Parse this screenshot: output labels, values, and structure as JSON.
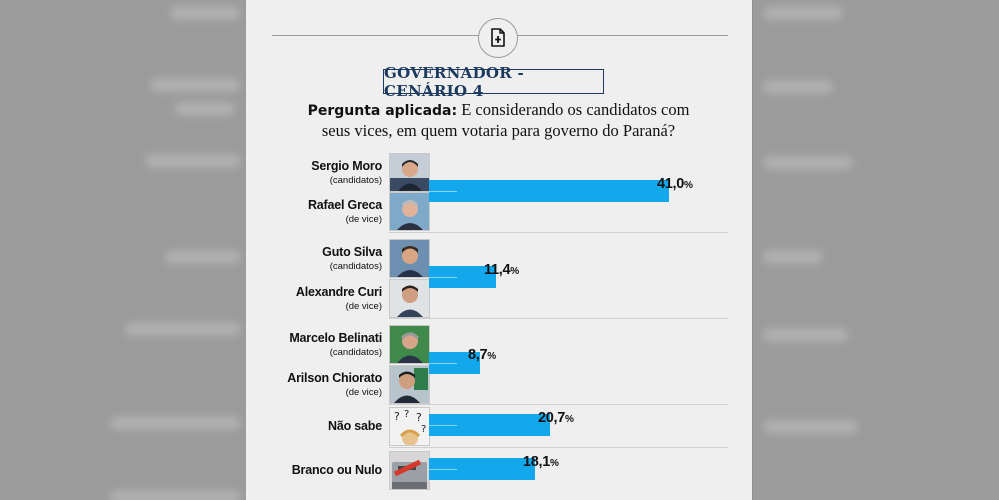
{
  "heading": "GOVERNADOR - CENÁRIO 4",
  "question": {
    "label": "Pergunta aplicada:",
    "text_line1": " E considerando os candidatos com",
    "text_line2": "seus vices, em quem votaria para governo do Paraná?"
  },
  "rows": [
    {
      "candidate": "Sergio Moro",
      "candidate_note": "(candidatos)",
      "vice": "Rafael Greca",
      "vice_note": "(de vice)",
      "value_label": "41,0",
      "unit": "%"
    },
    {
      "candidate": "Guto Silva",
      "candidate_note": "(candidatos)",
      "vice": "Alexandre Curi",
      "vice_note": "(de vice)",
      "value_label": "11,4",
      "unit": "%"
    },
    {
      "candidate": "Marcelo Belinati",
      "candidate_note": "(candidatos)",
      "vice": "Arilson Chiorato",
      "vice_note": "(de vice)",
      "value_label": "8,7",
      "unit": "%"
    },
    {
      "candidate": "Não sabe",
      "value_label": "20,7",
      "unit": "%"
    },
    {
      "candidate": "Branco ou Nulo",
      "value_label": "18,1",
      "unit": "%"
    }
  ],
  "chart_data": {
    "type": "bar",
    "orientation": "horizontal",
    "categories": [
      "Sergio Moro / Rafael Greca",
      "Guto Silva / Alexandre Curi",
      "Marcelo Belinati / Arilson Chiorato",
      "Não sabe",
      "Branco ou Nulo"
    ],
    "values": [
      41.0,
      11.4,
      8.7,
      20.7,
      18.1
    ],
    "title": "GOVERNADOR - CENÁRIO 4",
    "subtitle": "Pergunta aplicada: E considerando os candidatos com seus vices, em quem votaria para governo do Paraná?",
    "unit": "%",
    "bar_color": "#13a7eb",
    "xlim": [
      0,
      41.0
    ],
    "grid": false,
    "legend": "none"
  },
  "colors": {
    "accent": "#13a7eb",
    "heading": "#1c3a5e"
  },
  "icons": {
    "top": "file-plus-icon"
  }
}
